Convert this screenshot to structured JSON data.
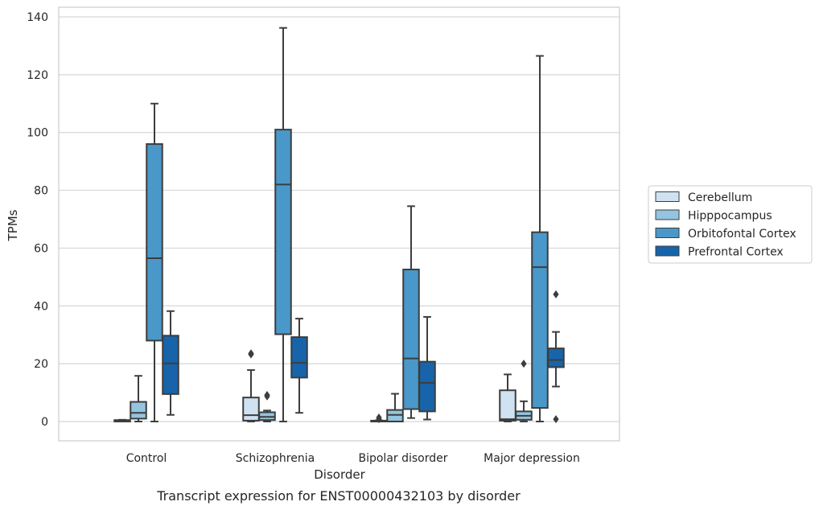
{
  "chart_data": {
    "type": "box",
    "title": "",
    "caption": "Transcript expression for ENST00000432103 by disorder",
    "xlabel": "Disorder",
    "ylabel": "TPMs",
    "ylim": [
      -6.5,
      143
    ],
    "yticks": [
      0,
      20,
      40,
      60,
      80,
      100,
      120,
      140
    ],
    "grid": true,
    "legend_position": "right",
    "categories": [
      "Control",
      "Schizophrenia",
      "Bipolar disorder",
      "Major depression"
    ],
    "series": [
      {
        "name": "Cerebellum",
        "color": "#d0e1f2",
        "boxes": [
          {
            "lower_whisker": 0,
            "q1": 0,
            "median": 0.2,
            "q3": 0.5,
            "upper_whisker": 0.6,
            "outliers": []
          },
          {
            "lower_whisker": 0,
            "q1": 0.3,
            "median": 2.2,
            "q3": 8.3,
            "upper_whisker": 17.8,
            "outliers": [
              23.2,
              23.6
            ]
          },
          {
            "lower_whisker": 0,
            "q1": 0,
            "median": 0.1,
            "q3": 0.3,
            "upper_whisker": 0.4,
            "outliers": [
              0.8,
              1.4
            ]
          },
          {
            "lower_whisker": 0,
            "q1": 0.3,
            "median": 0.8,
            "q3": 10.8,
            "upper_whisker": 16.3,
            "outliers": []
          }
        ]
      },
      {
        "name": "Hipppocampus",
        "color": "#94c4df",
        "boxes": [
          {
            "lower_whisker": 0,
            "q1": 1,
            "median": 3,
            "q3": 6.8,
            "upper_whisker": 15.8,
            "outliers": []
          },
          {
            "lower_whisker": 0,
            "q1": 0.5,
            "median": 1.6,
            "q3": 3.2,
            "upper_whisker": 3.8,
            "outliers": [
              8.7,
              9.2
            ]
          },
          {
            "lower_whisker": 0,
            "q1": 0,
            "median": 2.3,
            "q3": 4,
            "upper_whisker": 9.6,
            "outliers": []
          },
          {
            "lower_whisker": 0,
            "q1": 0.6,
            "median": 2,
            "q3": 3.5,
            "upper_whisker": 7,
            "outliers": [
              20
            ]
          }
        ]
      },
      {
        "name": "Orbitofontal Cortex",
        "color": "#4a98c9",
        "boxes": [
          {
            "lower_whisker": 0,
            "q1": 28,
            "median": 56.5,
            "q3": 96,
            "upper_whisker": 110,
            "outliers": []
          },
          {
            "lower_whisker": 0,
            "q1": 30.2,
            "median": 82,
            "q3": 101,
            "upper_whisker": 136.2,
            "outliers": []
          },
          {
            "lower_whisker": 1.2,
            "q1": 4.3,
            "median": 21.8,
            "q3": 52.6,
            "upper_whisker": 74.5,
            "outliers": []
          },
          {
            "lower_whisker": 0,
            "q1": 4.7,
            "median": 53.4,
            "q3": 65.5,
            "upper_whisker": 126.5,
            "outliers": []
          }
        ]
      },
      {
        "name": "Prefrontal Cortex",
        "color": "#1764ab",
        "boxes": [
          {
            "lower_whisker": 2.3,
            "q1": 9.5,
            "median": 20.1,
            "q3": 29.7,
            "upper_whisker": 38.2,
            "outliers": []
          },
          {
            "lower_whisker": 3,
            "q1": 15.2,
            "median": 20.3,
            "q3": 29.2,
            "upper_whisker": 35.6,
            "outliers": []
          },
          {
            "lower_whisker": 0.7,
            "q1": 3.5,
            "median": 13.4,
            "q3": 20.7,
            "upper_whisker": 36.2,
            "outliers": []
          },
          {
            "lower_whisker": 12.1,
            "q1": 18.8,
            "median": 21.3,
            "q3": 25.3,
            "upper_whisker": 31,
            "outliers": [
              44,
              0.8
            ]
          }
        ]
      }
    ]
  }
}
